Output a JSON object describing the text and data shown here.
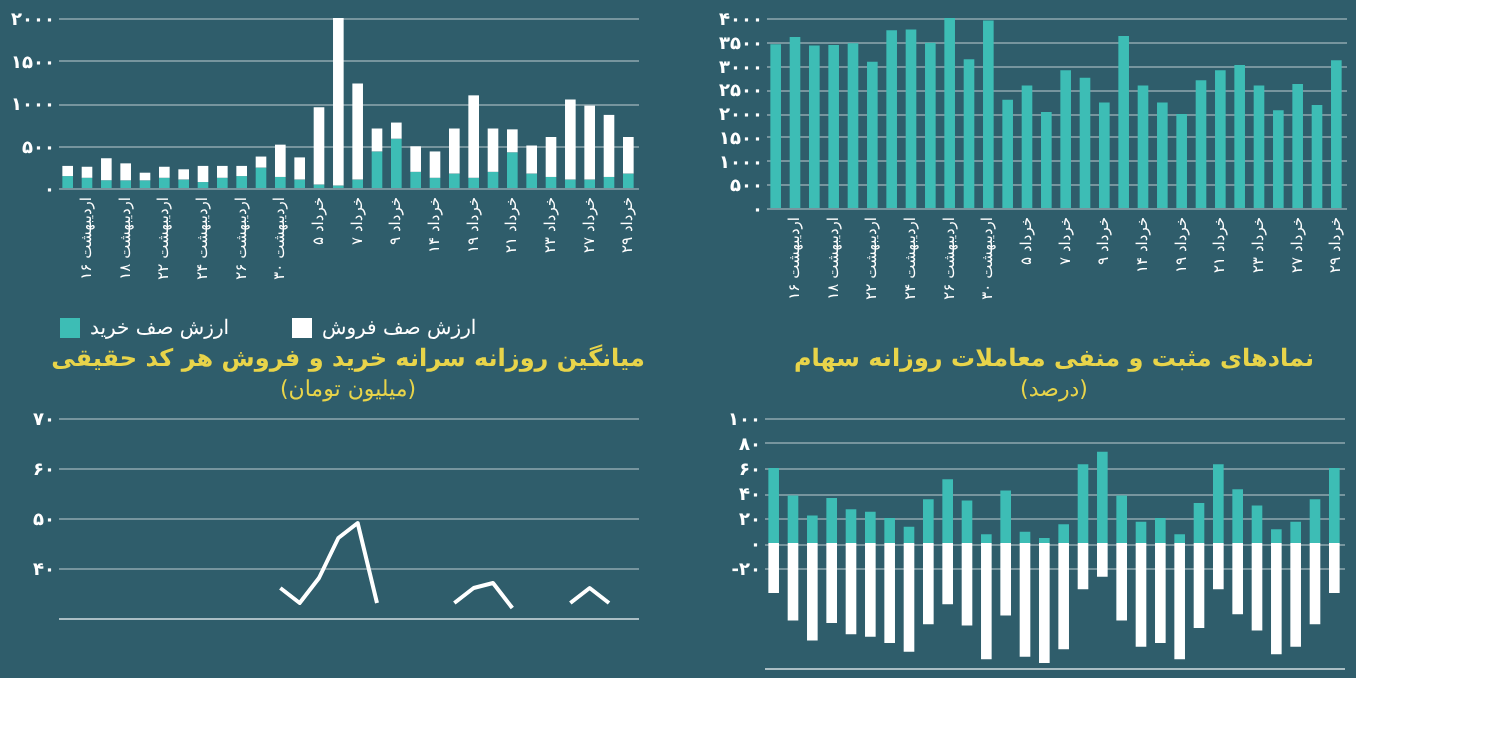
{
  "chart_data": [
    {
      "type": "bar",
      "stacked": true,
      "grid": "y",
      "legend": "bottom",
      "categories": [
        null,
        "۱۶ اردیبهشت",
        null,
        "۱۸ اردیبهشت",
        null,
        "۲۲ اردیبهشت",
        null,
        "۲۴ اردیبهشت",
        null,
        "۲۶ اردیبهشت",
        null,
        "۳۰ اردیبهشت",
        null,
        "۵ خرداد",
        null,
        "۷ خرداد",
        null,
        "۹ خرداد",
        null,
        "۱۴ خرداد",
        null,
        "۱۹ خرداد",
        null,
        "۲۱ خرداد",
        null,
        "۲۳ خرداد",
        null,
        "۲۷ خرداد",
        null,
        "۲۹ خرداد"
      ],
      "series": [
        {
          "name": "ارزش صف خرید",
          "color": "#3dbdb5",
          "values": [
            140,
            120,
            90,
            90,
            90,
            120,
            100,
            70,
            120,
            140,
            240,
            130,
            100,
            40,
            30,
            100,
            430,
            580,
            190,
            120,
            170,
            120,
            190,
            420,
            170,
            130,
            100,
            100,
            130,
            170
          ]
        },
        {
          "name": "ارزش صف فروش",
          "color": "#ffffff",
          "values": [
            120,
            130,
            260,
            200,
            90,
            130,
            120,
            190,
            140,
            120,
            130,
            380,
            260,
            910,
            1970,
            1130,
            270,
            190,
            300,
            310,
            530,
            970,
            510,
            270,
            330,
            470,
            940,
            870,
            730,
            430
          ]
        }
      ],
      "ylim": [
        0,
        2000
      ],
      "yticks": [
        {
          "value": 0,
          "label": "۰"
        },
        {
          "value": 500,
          "label": "۵۰۰"
        },
        {
          "value": 1000,
          "label": "۱۰۰۰"
        },
        {
          "value": 1500,
          "label": "۱۵۰۰"
        },
        {
          "value": 2000,
          "label": "۲۰۰۰"
        }
      ]
    },
    {
      "type": "bar",
      "grid": "y",
      "categories": [
        null,
        "۱۶ اردیبهشت",
        null,
        "۱۸ اردیبهشت",
        null,
        "۲۲ اردیبهشت",
        null,
        "۲۴ اردیبهشت",
        null,
        "۲۶ اردیبهشت",
        null,
        "۳۰ اردیبهشت",
        null,
        "۵ خرداد",
        null,
        "۷ خرداد",
        null,
        "۹ خرداد",
        null,
        "۱۴ خرداد",
        null,
        "۱۹ خرداد",
        null,
        "۲۱ خرداد",
        null,
        "۲۳ خرداد",
        null,
        "۲۷ خرداد",
        null,
        "۲۹ خرداد"
      ],
      "series": [
        {
          "color": "#3dbdb5",
          "values": [
            3450,
            3600,
            3420,
            3430,
            3470,
            3080,
            3740,
            3760,
            3480,
            4000,
            3130,
            3950,
            2280,
            2580,
            2020,
            2900,
            2740,
            2220,
            3620,
            2580,
            2220,
            1980,
            2690,
            2900,
            3010,
            2580,
            2060,
            2610,
            2170,
            3110
          ]
        }
      ],
      "ylim": [
        0,
        4000
      ],
      "yticks": [
        {
          "value": 0,
          "label": "۰"
        },
        {
          "value": 500,
          "label": "۵۰۰"
        },
        {
          "value": 1000,
          "label": "۱۰۰۰"
        },
        {
          "value": 1500,
          "label": "۱۵۰۰"
        },
        {
          "value": 2000,
          "label": "۲۰۰۰"
        },
        {
          "value": 2500,
          "label": "۲۵۰۰"
        },
        {
          "value": 3000,
          "label": "۳۰۰۰"
        },
        {
          "value": 3500,
          "label": "۳۵۰۰"
        },
        {
          "value": 4000,
          "label": "۴۰۰۰"
        }
      ]
    },
    {
      "type": "line",
      "grid": "y",
      "tick_labels": "y",
      "line_style": "solid",
      "title": "میانگین روزانه سرانه خرید و فروش هر کد حقیقی",
      "subtitle": "(میلیون تومان)",
      "categories": [
        null,
        null,
        null,
        null,
        null,
        null,
        null,
        null,
        null,
        null,
        null,
        null,
        null,
        null,
        null,
        null,
        null,
        null,
        null,
        null,
        null,
        null,
        null,
        null,
        null,
        null,
        null,
        null,
        null,
        null
      ],
      "series": [
        {
          "color": "#ffffff",
          "values": [
            null,
            null,
            null,
            null,
            null,
            null,
            null,
            null,
            null,
            null,
            null,
            36,
            33,
            38,
            46,
            49,
            33,
            null,
            null,
            null,
            33,
            36,
            37,
            32,
            null,
            null,
            33,
            36,
            33,
            null
          ]
        }
      ],
      "ylim": [
        30,
        70
      ],
      "yticks": [
        {
          "value": 40,
          "label": "۴۰"
        },
        {
          "value": 50,
          "label": "۵۰"
        },
        {
          "value": 60,
          "label": "۶۰"
        },
        {
          "value": 70,
          "label": "۷۰"
        }
      ]
    },
    {
      "type": "bar",
      "stacked": true,
      "grid": "y",
      "tick_labels": "y",
      "title": "نمادهای مثبت و منفی معاملات روزانه سهام",
      "subtitle": "(درصد)",
      "categories": [
        null,
        null,
        null,
        null,
        null,
        null,
        null,
        null,
        null,
        null,
        null,
        null,
        null,
        null,
        null,
        null,
        null,
        null,
        null,
        null,
        null,
        null,
        null,
        null,
        null,
        null,
        null,
        null,
        null,
        null
      ],
      "series": [
        {
          "color": "#3dbdb5",
          "values": [
            60,
            38,
            22,
            36,
            27,
            25,
            20,
            13,
            35,
            51,
            34,
            7,
            42,
            9,
            4,
            15,
            63,
            73,
            38,
            17,
            20,
            7,
            32,
            63,
            43,
            30,
            11,
            17,
            35,
            60
          ]
        },
        {
          "color": "#ffffff",
          "values": [
            -40,
            -62,
            -78,
            -64,
            -73,
            -75,
            -80,
            -87,
            -65,
            -49,
            -66,
            -93,
            -58,
            -91,
            -96,
            -85,
            -37,
            -27,
            -62,
            -83,
            -80,
            -93,
            -68,
            -37,
            -57,
            -70,
            -89,
            -83,
            -65,
            -40
          ]
        }
      ],
      "ylim": [
        -100,
        100
      ],
      "yticks": [
        {
          "value": -20,
          "label": "-۲۰"
        },
        {
          "value": 0,
          "label": "۰"
        },
        {
          "value": 20,
          "label": "۲۰"
        },
        {
          "value": 40,
          "label": "۴۰"
        },
        {
          "value": 60,
          "label": "۶۰"
        },
        {
          "value": 80,
          "label": "۸۰"
        },
        {
          "value": 100,
          "label": "۱۰۰"
        }
      ]
    }
  ]
}
